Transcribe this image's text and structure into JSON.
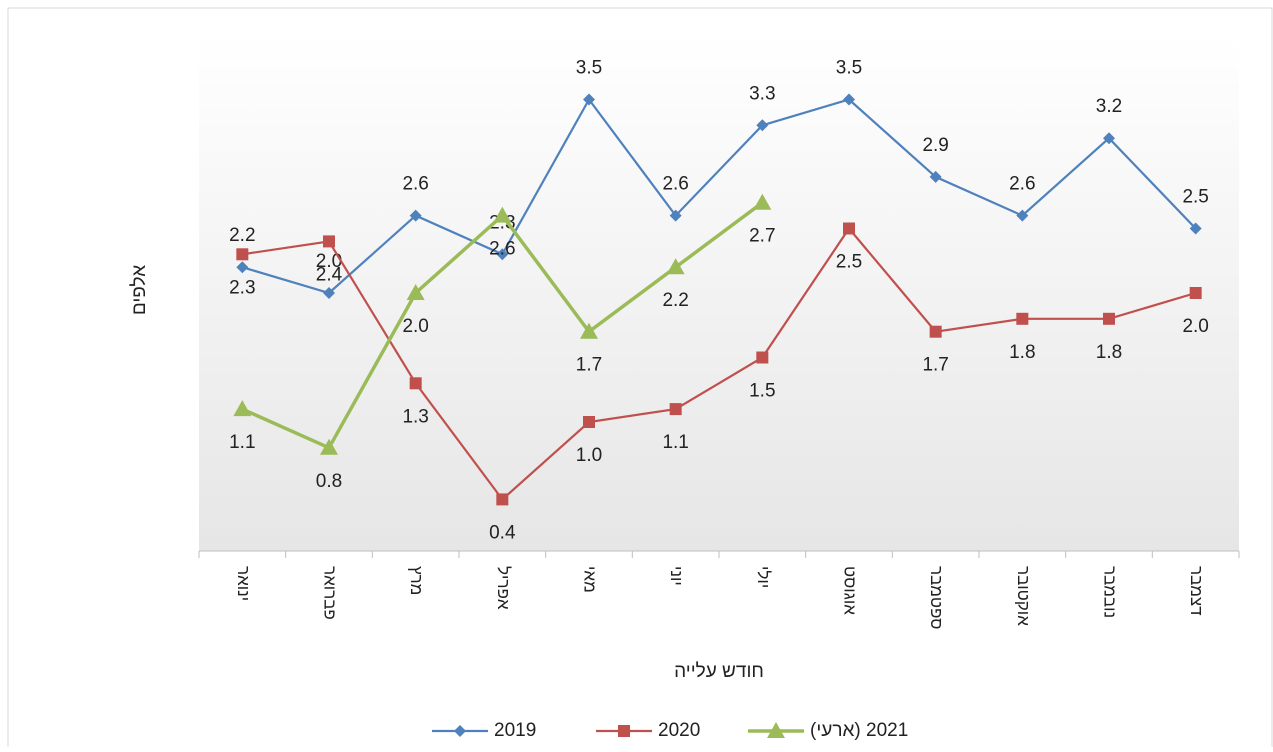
{
  "chart_data": {
    "type": "line",
    "x_label": "חודש עלייה",
    "y_label": "אלפים",
    "categories": [
      "ינואר",
      "פברואר",
      "מרץ",
      "אפריל",
      "מאי",
      "יוני",
      "יולי",
      "אוגוסט",
      "ספטמבר",
      "אוקטובר",
      "נובמבר",
      "דצמבר"
    ],
    "ylim": [
      0,
      4
    ],
    "legend": "bottom",
    "series": [
      {
        "name": "2019",
        "color": "#4f81bd",
        "marker": "diamond",
        "label_pos": "above",
        "values": [
          2.2,
          2.0,
          2.6,
          2.3,
          3.5,
          2.6,
          3.3,
          3.5,
          2.9,
          2.6,
          3.2,
          2.5
        ],
        "value_labels": [
          "2.2",
          "2.0",
          "2.6",
          "2.3",
          "3.5",
          "2.6",
          "3.3",
          "3.5",
          "2.9",
          "2.6",
          "3.2",
          "2.5"
        ]
      },
      {
        "name": "2020",
        "color": "#c0504d",
        "marker": "square",
        "label_pos": "below",
        "values": [
          2.3,
          2.4,
          1.3,
          0.4,
          1.0,
          1.1,
          1.5,
          2.5,
          1.7,
          1.8,
          1.8,
          2.0
        ],
        "value_labels": [
          "2.3",
          "2.4",
          "1.3",
          "0.4",
          "1.0",
          "1.1",
          "1.5",
          "2.5",
          "1.7",
          "1.8",
          "1.8",
          "2.0"
        ]
      },
      {
        "name": "2021 (ארעי)",
        "color": "#9bbb59",
        "marker": "triangle",
        "label_pos": "below",
        "values": [
          1.1,
          0.8,
          2.0,
          2.6,
          1.7,
          2.2,
          2.7,
          null,
          null,
          null,
          null,
          null
        ],
        "value_labels": [
          "1.1",
          "0.8",
          "2.0",
          "2.6",
          "1.7",
          "2.2",
          "2.7",
          null,
          null,
          null,
          null,
          null
        ]
      }
    ]
  }
}
